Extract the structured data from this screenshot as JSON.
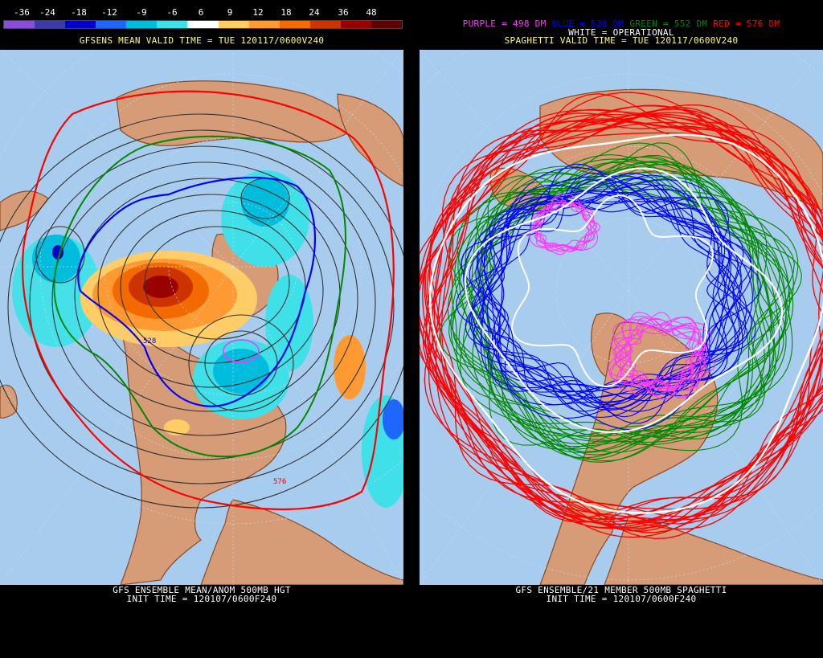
{
  "left_panel": {
    "scale_ticks": [
      "-36",
      "-24",
      "-18",
      "-12",
      "-9",
      "-6",
      "6",
      "9",
      "12",
      "18",
      "24",
      "36",
      "48"
    ],
    "scale_colors": [
      "#8a4fd8",
      "#3a3aa8",
      "#0000cc",
      "#1f66ff",
      "#00bcdd",
      "#3fe0e8",
      "#ffffff",
      "#ffcc66",
      "#ff9a33",
      "#f26a00",
      "#cc3300",
      "#990000",
      "#5e0000"
    ],
    "valid_time": "GFSENS MEAN VALID TIME = TUE 120117/0600V240",
    "footer_line1": "GFS ENSEMBLE MEAN/ANOM 500MB HGT",
    "footer_line2": "INIT TIME = 120107/0600F240",
    "contour_label_blue": "528",
    "contour_label_red": "576"
  },
  "right_panel": {
    "legend": {
      "purple": "PURPLE = 498 DM",
      "blue": "BLUE = 528 DM",
      "green": "GREEN = 552 DM",
      "red": "RED = 576 DM",
      "white": "WHITE = OPERATIONAL"
    },
    "valid_time": "SPAGHETTI VALID TIME = TUE 120117/0600V240",
    "footer_line1": "GFS ENSEMBLE/21 MEMBER 500MB SPAGHETTI",
    "footer_line2": "INIT TIME = 120107/0600F240"
  },
  "colors": {
    "ocean": "#a8cced",
    "land": "#d69c78",
    "coast": "#8b4a24",
    "purple": "#ff33ff",
    "blue": "#0000ff",
    "green": "#008800",
    "red": "#ff0000",
    "yellow": "#ffff66",
    "white": "#ffffff"
  }
}
